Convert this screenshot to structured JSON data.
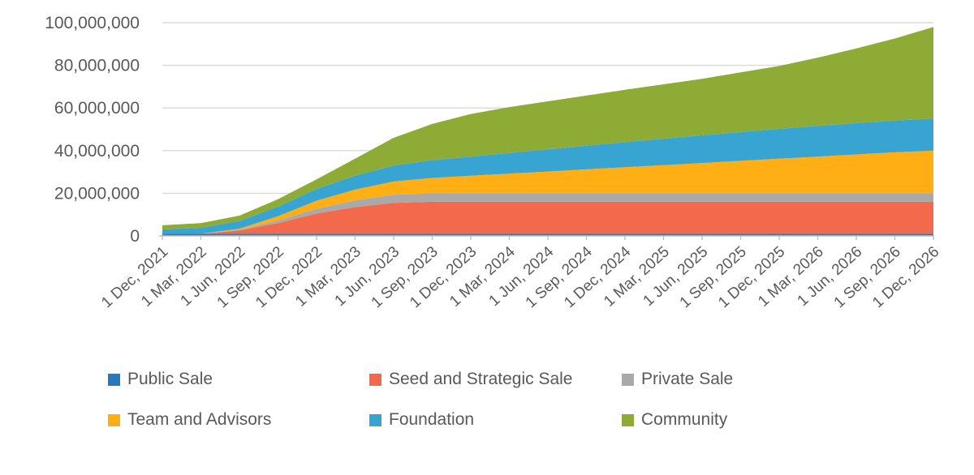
{
  "chart_data": {
    "type": "area",
    "stacked": true,
    "title": "",
    "grid": true,
    "legend_position": "bottom",
    "x_labels": [
      "1 Dec, 2021",
      "1 Mar, 2022",
      "1 Jun, 2022",
      "1 Sep, 2022",
      "1 Dec, 2022",
      "1 Mar, 2023",
      "1 Jun, 2023",
      "1 Sep, 2023",
      "1 Dec, 2023",
      "1 Mar, 2024",
      "1 Jun, 2024",
      "1 Sep, 2024",
      "1 Dec, 2024",
      "1 Mar, 2025",
      "1 Jun, 2025",
      "1 Sep, 2025",
      "1 Dec, 2025",
      "1 Mar, 2026",
      "1 Jun, 2026",
      "1 Sep, 2026",
      "1 Dec, 2026"
    ],
    "y_axis": {
      "min": 0,
      "max": 100000000,
      "tick_step": 20000000,
      "tick_labels": [
        "0",
        "20,000,000",
        "40,000,000",
        "60,000,000",
        "80,000,000",
        "100,000,000"
      ]
    },
    "series": [
      {
        "name": "Public Sale",
        "color": "#2879BD",
        "values": [
          1000000,
          1000000,
          1000000,
          1000000,
          1000000,
          1000000,
          1000000,
          1000000,
          1000000,
          1000000,
          1000000,
          1000000,
          1000000,
          1000000,
          1000000,
          1000000,
          1000000,
          1000000,
          1000000,
          1000000,
          1000000
        ]
      },
      {
        "name": "Seed and Strategic Sale",
        "color": "#F2694C",
        "values": [
          0,
          0,
          1500000,
          5000000,
          9500000,
          12500000,
          14500000,
          15000000,
          15000000,
          15000000,
          15000000,
          15000000,
          15000000,
          15000000,
          15000000,
          15000000,
          15000000,
          15000000,
          15000000,
          15000000,
          15000000
        ]
      },
      {
        "name": "Private Sale",
        "color": "#A9A9A9",
        "values": [
          0,
          0,
          400000,
          1200000,
          2200000,
          3200000,
          3800000,
          4000000,
          4000000,
          4000000,
          4000000,
          4000000,
          4000000,
          4000000,
          4000000,
          4000000,
          4000000,
          4000000,
          4000000,
          4000000,
          4000000
        ]
      },
      {
        "name": "Team and Advisors",
        "color": "#FFAF14",
        "values": [
          0,
          0,
          500000,
          2000000,
          3800000,
          5000000,
          6200000,
          7200000,
          8200000,
          9200000,
          10200000,
          11200000,
          12200000,
          13200000,
          14200000,
          15200000,
          16200000,
          17200000,
          18200000,
          19200000,
          20000000
        ]
      },
      {
        "name": "Foundation",
        "color": "#38A4D2",
        "values": [
          2000000,
          2800000,
          3600000,
          4500000,
          5500000,
          6500000,
          7500000,
          8300000,
          9000000,
          9700000,
          10400000,
          11100000,
          11800000,
          12400000,
          13000000,
          13500000,
          14000000,
          14400000,
          14700000,
          14900000,
          15000000
        ]
      },
      {
        "name": "Community",
        "color": "#8EAB35",
        "values": [
          2000000,
          2200000,
          2500000,
          3500000,
          4500000,
          8000000,
          13000000,
          17000000,
          20000000,
          21500000,
          22500000,
          23500000,
          24500000,
          25500000,
          26500000,
          28000000,
          29500000,
          32000000,
          35000000,
          38500000,
          43000000
        ]
      }
    ],
    "colors": {
      "gridline": "#D9D9D9",
      "axis_line": "#BFBFBF",
      "text": "#595959"
    }
  },
  "legend": {
    "items": [
      {
        "label": "Public Sale",
        "color": "#2879BD"
      },
      {
        "label": "Seed and Strategic Sale",
        "color": "#F2694C"
      },
      {
        "label": "Private Sale",
        "color": "#A9A9A9"
      },
      {
        "label": "Team and Advisors",
        "color": "#FFAF14"
      },
      {
        "label": "Foundation",
        "color": "#38A4D2"
      },
      {
        "label": "Community",
        "color": "#8EAB35"
      }
    ]
  }
}
